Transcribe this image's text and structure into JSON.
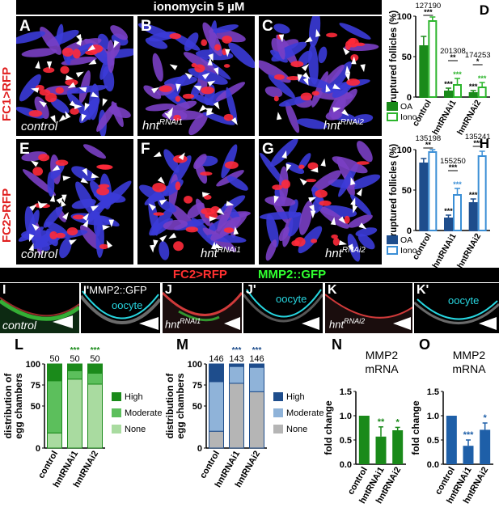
{
  "top_banner": "ionomycin 5 µM",
  "row_labels": {
    "fc1": "FC1>RFP",
    "fc2": "FC2>RFP"
  },
  "mid_banner": {
    "left": "FC2>RFP",
    "right": "MMP2::GFP"
  },
  "panels": {
    "A": {
      "letter": "A",
      "cond": "control"
    },
    "B": {
      "letter": "B",
      "cond": "hnt",
      "sup": "RNAi1"
    },
    "C": {
      "letter": "C",
      "cond": "hnt",
      "sup": "RNAi2"
    },
    "E": {
      "letter": "E",
      "cond": "control"
    },
    "F": {
      "letter": "F",
      "cond": "hnt",
      "sup": "RNAi1"
    },
    "G": {
      "letter": "G",
      "cond": "hnt",
      "sup": "RNAi2"
    },
    "I": {
      "letter": "I",
      "cond": "control"
    },
    "I2": {
      "letter": "I'",
      "sub": "MMP2::GFP",
      "oocyte": "oocyte"
    },
    "J": {
      "letter": "J",
      "cond": "hnt",
      "sup": "RNAi1"
    },
    "J2": {
      "letter": "J'",
      "oocyte": "oocyte"
    },
    "K": {
      "letter": "K",
      "cond": "hnt",
      "sup": "RNAi2"
    },
    "K2": {
      "letter": "K'",
      "oocyte": "oocyte"
    }
  },
  "chart_data": [
    {
      "id": "D",
      "type": "bar",
      "ylabel": "ruptured follicles (%)",
      "ylim": [
        0,
        100
      ],
      "yticks": [
        0,
        50,
        100
      ],
      "categories": [
        "control",
        "hnt RNAi1",
        "hnt RNAi2"
      ],
      "series": [
        {
          "name": "OA",
          "values": [
            63,
            7,
            5
          ],
          "errors": [
            12,
            4,
            3
          ],
          "color": "#1a8a1a",
          "filled": true
        },
        {
          "name": "Iono",
          "values": [
            94,
            15,
            12
          ],
          "errors": [
            5,
            8,
            6
          ],
          "color": "#2db52d",
          "filled": false
        }
      ],
      "n": [
        [
          "127",
          "190"
        ],
        [
          "201",
          "308"
        ],
        [
          "174",
          "253"
        ]
      ],
      "sig_pairs": [
        "***",
        "**",
        "*"
      ],
      "sig_bars": [
        [
          "",
          ""
        ],
        [
          "***",
          "***"
        ],
        [
          "***",
          "***"
        ]
      ]
    },
    {
      "id": "H",
      "type": "bar",
      "ylabel": "ruptured follicles (%)",
      "ylim": [
        0,
        100
      ],
      "yticks": [
        0,
        50,
        100
      ],
      "categories": [
        "control",
        "hnt RNAi1",
        "hnt RNAi2"
      ],
      "series": [
        {
          "name": "OA",
          "values": [
            83,
            15,
            34
          ],
          "errors": [
            6,
            4,
            5
          ],
          "color": "#1e4d8c",
          "filled": true
        },
        {
          "name": "Iono",
          "values": [
            97,
            44,
            92
          ],
          "errors": [
            3,
            8,
            6
          ],
          "color": "#3b8fd6",
          "filled": false
        }
      ],
      "n": [
        [
          "135",
          "198"
        ],
        [
          "155",
          "250"
        ],
        [
          "135",
          "241"
        ]
      ],
      "sig_pairs": [
        "**",
        "***",
        "***"
      ],
      "sig_bars": [
        [
          "",
          ""
        ],
        [
          "***",
          "***"
        ],
        [
          "***",
          ""
        ]
      ]
    },
    {
      "id": "L",
      "type": "bar",
      "stacked": true,
      "ylabel": "distribution of egg chambers",
      "ylim": [
        0,
        100
      ],
      "yticks": [
        0,
        50,
        75,
        100
      ],
      "categories": [
        "control",
        "hnt RNAi1",
        "hnt RNAi2"
      ],
      "n": [
        "50",
        "50",
        "50"
      ],
      "sig": [
        "",
        "***",
        "***"
      ],
      "series": [
        {
          "name": "None",
          "values": [
            18,
            82,
            76
          ],
          "color": "#a9dba0"
        },
        {
          "name": "Moderate",
          "values": [
            62,
            10,
            13
          ],
          "color": "#5cbf5c"
        },
        {
          "name": "High",
          "values": [
            20,
            8,
            11
          ],
          "color": "#1a8a1a"
        }
      ],
      "legend": [
        "High",
        "Moderate",
        "None"
      ]
    },
    {
      "id": "M",
      "type": "bar",
      "stacked": true,
      "ylabel": "distribution of egg chambers",
      "ylim": [
        0,
        100
      ],
      "yticks": [
        0,
        50,
        75,
        100
      ],
      "categories": [
        "control",
        "hnt RNAi1",
        "hnt RNAi2"
      ],
      "n": [
        "146",
        "143",
        "146"
      ],
      "sig": [
        "",
        "***",
        "***"
      ],
      "series": [
        {
          "name": "None",
          "values": [
            20,
            77,
            67
          ],
          "color": "#b5b5b5"
        },
        {
          "name": "Moderate",
          "values": [
            59,
            20,
            29
          ],
          "color": "#8fb3d9"
        },
        {
          "name": "High",
          "values": [
            21,
            3,
            4
          ],
          "color": "#1e4d8c"
        }
      ],
      "legend": [
        "High",
        "Moderate",
        "None"
      ]
    },
    {
      "id": "N",
      "type": "bar",
      "title": "MMP2\nmRNA",
      "ylabel": "fold change",
      "ylim": [
        0,
        1.5
      ],
      "yticks": [
        0.0,
        0.5,
        1.0,
        1.5
      ],
      "categories": [
        "control",
        "hnt RNAi1",
        "hnt RNAi2"
      ],
      "values": [
        1.0,
        0.57,
        0.7
      ],
      "errors": [
        0,
        0.2,
        0.06
      ],
      "sig": [
        "",
        "**",
        "*"
      ],
      "color": "#1a8a1a",
      "sig_color": "#1a8a1a"
    },
    {
      "id": "O",
      "type": "bar",
      "title": "MMP2\nmRNA",
      "ylabel": "fold change",
      "ylim": [
        0,
        1.5
      ],
      "yticks": [
        0.0,
        0.5,
        1.0,
        1.5
      ],
      "categories": [
        "control",
        "hnt RNAi1",
        "hnt RNAi2"
      ],
      "values": [
        1.0,
        0.38,
        0.71
      ],
      "errors": [
        0,
        0.12,
        0.14
      ],
      "sig": [
        "",
        "***",
        "*"
      ],
      "color": "#1e5fa8",
      "sig_color": "#1e5fa8"
    }
  ]
}
